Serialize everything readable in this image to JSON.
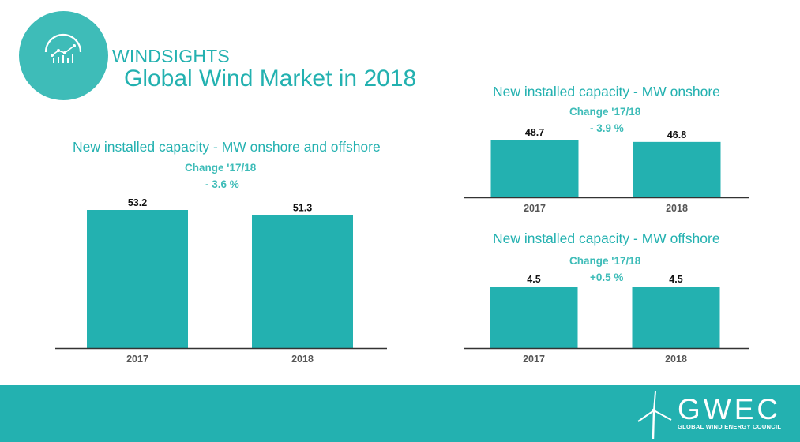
{
  "header": {
    "brand": "WINDSIGHTS",
    "title": "Global Wind Market in 2018"
  },
  "colors": {
    "accent": "#23b1b0",
    "bar": "#23b1b0",
    "logo_circle": "#3ebcb8"
  },
  "icons": {
    "logo": "analytics-chart-icon",
    "footer": "wind-turbine-icon"
  },
  "chart_data": [
    {
      "type": "bar",
      "title": "New installed capacity - MW onshore and offshore",
      "change_label": "Change '17/18",
      "change_value": "- 3.6 %",
      "categories": [
        "2017",
        "2018"
      ],
      "values": [
        53.2,
        51.3
      ],
      "value_labels": [
        "53.2",
        "51.3"
      ],
      "ylim": [
        0,
        53.2
      ],
      "grid": false
    },
    {
      "type": "bar",
      "title": "New installed capacity - MW onshore",
      "change_label": "Change '17/18",
      "change_value": "- 3.9 %",
      "categories": [
        "2017",
        "2018"
      ],
      "values": [
        48.7,
        46.8
      ],
      "value_labels": [
        "48.7",
        "46.8"
      ],
      "ylim": [
        0,
        48.7
      ],
      "grid": false
    },
    {
      "type": "bar",
      "title": "New installed capacity - MW offshore",
      "change_label": "Change '17/18",
      "change_value": "+0.5 %",
      "categories": [
        "2017",
        "2018"
      ],
      "values": [
        4.5,
        4.5
      ],
      "value_labels": [
        "4.5",
        "4.5"
      ],
      "ylim": [
        0,
        4.5
      ],
      "grid": false
    }
  ],
  "footer": {
    "logo_text": "GWEC",
    "logo_subtitle": "GLOBAL WIND ENERGY COUNCIL"
  }
}
